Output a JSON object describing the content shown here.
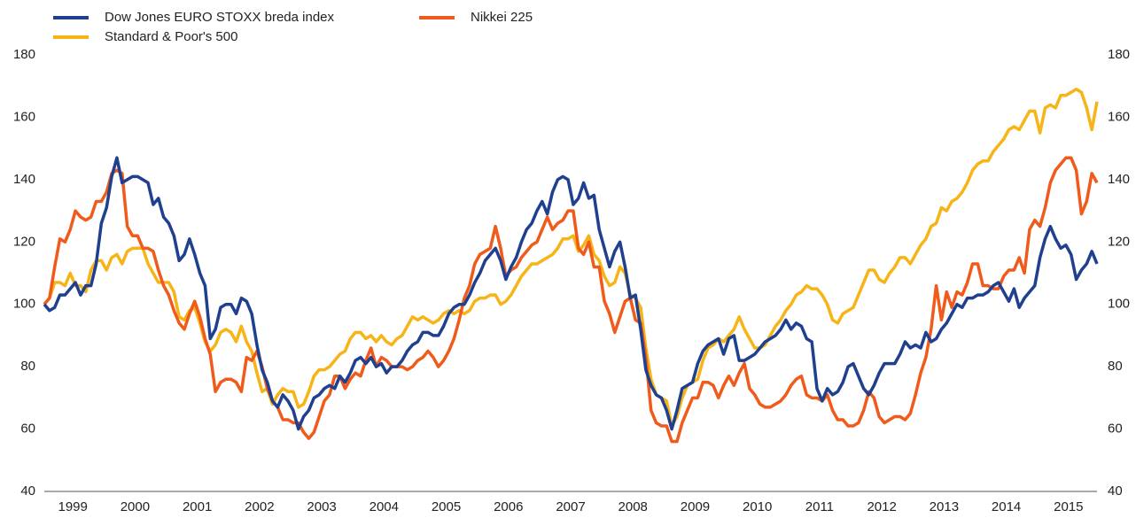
{
  "chart_data": {
    "type": "line",
    "categories": [
      null,
      null,
      null,
      null,
      null,
      null,
      "1999",
      null,
      null,
      null,
      null,
      null,
      null,
      null,
      null,
      null,
      null,
      null,
      "2000",
      null,
      null,
      null,
      null,
      null,
      null,
      null,
      null,
      null,
      null,
      null,
      "2001",
      null,
      null,
      null,
      null,
      null,
      null,
      null,
      null,
      null,
      null,
      null,
      "2002",
      null,
      null,
      null,
      null,
      null,
      null,
      null,
      null,
      null,
      null,
      null,
      "2003",
      null,
      null,
      null,
      null,
      null,
      null,
      null,
      null,
      null,
      null,
      null,
      "2004",
      null,
      null,
      null,
      null,
      null,
      null,
      null,
      null,
      null,
      null,
      null,
      "2005",
      null,
      null,
      null,
      null,
      null,
      null,
      null,
      null,
      null,
      null,
      null,
      "2006",
      null,
      null,
      null,
      null,
      null,
      null,
      null,
      null,
      null,
      null,
      null,
      "2007",
      null,
      null,
      null,
      null,
      null,
      null,
      null,
      null,
      null,
      null,
      null,
      "2008",
      null,
      null,
      null,
      null,
      null,
      null,
      null,
      null,
      null,
      null,
      null,
      "2009",
      null,
      null,
      null,
      null,
      null,
      null,
      null,
      null,
      null,
      null,
      null,
      "2010",
      null,
      null,
      null,
      null,
      null,
      null,
      null,
      null,
      null,
      null,
      null,
      "2011",
      null,
      null,
      null,
      null,
      null,
      null,
      null,
      null,
      null,
      null,
      null,
      "2012",
      null,
      null,
      null,
      null,
      null,
      null,
      null,
      null,
      null,
      null,
      null,
      "2013",
      null,
      null,
      null,
      null,
      null,
      null,
      null,
      null,
      null,
      null,
      null,
      "2014",
      null,
      null,
      null,
      null,
      null,
      null,
      null,
      null,
      null,
      null,
      null,
      "2015",
      null,
      null,
      null,
      null,
      null
    ],
    "series": [
      {
        "name": "Dow Jones EURO STOXX breda index",
        "color": "#1f3f8f",
        "values": [
          100,
          98,
          99,
          103,
          103,
          105,
          107,
          103,
          106,
          106,
          113,
          126,
          131,
          141,
          147,
          139,
          140,
          141,
          141,
          140,
          139,
          132,
          134,
          128,
          126,
          122,
          114,
          116,
          121,
          116,
          110,
          106,
          89,
          92,
          99,
          100,
          100,
          97,
          102,
          101,
          97,
          87,
          79,
          75,
          69,
          67,
          71,
          69,
          66,
          60,
          64,
          66,
          70,
          71,
          73,
          74,
          73,
          77,
          75,
          78,
          82,
          83,
          81,
          83,
          80,
          81,
          78,
          80,
          80,
          82,
          85,
          87,
          88,
          91,
          91,
          90,
          90,
          93,
          97,
          99,
          100,
          100,
          103,
          107,
          110,
          114,
          116,
          118,
          114,
          108,
          112,
          115,
          120,
          124,
          126,
          130,
          133,
          129,
          136,
          140,
          141,
          140,
          132,
          134,
          139,
          134,
          135,
          124,
          118,
          112,
          117,
          120,
          112,
          102,
          103,
          92,
          79,
          74,
          71,
          70,
          66,
          60,
          66,
          73,
          74,
          75,
          81,
          85,
          87,
          88,
          89,
          84,
          89,
          90,
          82,
          82,
          83,
          84,
          86,
          88,
          89,
          90,
          92,
          95,
          92,
          94,
          93,
          89,
          88,
          73,
          69,
          73,
          71,
          72,
          75,
          80,
          81,
          77,
          73,
          71,
          74,
          78,
          81,
          81,
          81,
          84,
          88,
          86,
          87,
          86,
          91,
          88,
          89,
          92,
          94,
          97,
          100,
          99,
          102,
          102,
          103,
          103,
          104,
          106,
          107,
          104,
          101,
          105,
          99,
          102,
          104,
          106,
          115,
          121,
          125,
          121,
          118,
          119,
          116,
          108,
          111,
          113,
          117,
          113
        ]
      },
      {
        "name": "Nikkei 225",
        "color": "#f05a1a",
        "values": [
          100,
          102,
          112,
          121,
          120,
          124,
          130,
          128,
          127,
          128,
          133,
          133,
          136,
          142,
          143,
          142,
          125,
          122,
          122,
          118,
          118,
          117,
          111,
          106,
          103,
          98,
          94,
          92,
          97,
          101,
          96,
          89,
          84,
          72,
          75,
          76,
          76,
          75,
          72,
          83,
          82,
          85,
          80,
          73,
          69,
          67,
          63,
          63,
          62,
          62,
          59,
          57,
          59,
          64,
          69,
          71,
          77,
          77,
          73,
          76,
          78,
          77,
          82,
          86,
          80,
          83,
          82,
          80,
          80,
          80,
          79,
          80,
          82,
          83,
          85,
          83,
          80,
          82,
          85,
          89,
          95,
          102,
          106,
          113,
          116,
          117,
          118,
          125,
          118,
          109,
          111,
          112,
          115,
          117,
          119,
          120,
          124,
          128,
          124,
          126,
          127,
          130,
          130,
          118,
          116,
          120,
          112,
          112,
          101,
          97,
          91,
          96,
          101,
          102,
          95,
          94,
          83,
          66,
          62,
          61,
          61,
          56,
          56,
          62,
          66,
          70,
          70,
          75,
          75,
          74,
          70,
          74,
          77,
          74,
          78,
          81,
          73,
          71,
          68,
          67,
          67,
          68,
          69,
          71,
          74,
          76,
          77,
          71,
          70,
          70,
          69,
          71,
          66,
          63,
          63,
          61,
          61,
          62,
          66,
          72,
          70,
          64,
          62,
          63,
          64,
          64,
          63,
          65,
          71,
          78,
          83,
          92,
          106,
          95,
          104,
          99,
          104,
          103,
          107,
          113,
          113,
          106,
          106,
          105,
          105,
          109,
          111,
          111,
          115,
          110,
          124,
          127,
          125,
          131,
          139,
          143,
          145,
          147,
          147,
          143,
          129,
          133,
          142,
          139
        ]
      },
      {
        "name": "Standard & Poor's 500",
        "color": "#f7b417",
        "values": [
          100,
          102,
          107,
          107,
          106,
          110,
          106,
          106,
          104,
          111,
          114,
          114,
          111,
          115,
          116,
          113,
          117,
          118,
          118,
          118,
          113,
          110,
          107,
          107,
          107,
          104,
          96,
          95,
          98,
          99,
          94,
          88,
          85,
          87,
          91,
          92,
          91,
          88,
          93,
          88,
          85,
          78,
          72,
          73,
          68,
          71,
          73,
          72,
          72,
          67,
          68,
          72,
          77,
          79,
          79,
          80,
          82,
          84,
          85,
          89,
          91,
          91,
          89,
          90,
          88,
          90,
          88,
          87,
          89,
          90,
          93,
          96,
          95,
          96,
          95,
          94,
          95,
          97,
          98,
          97,
          98,
          97,
          98,
          101,
          102,
          102,
          103,
          103,
          100,
          101,
          103,
          106,
          109,
          111,
          113,
          113,
          114,
          115,
          116,
          118,
          121,
          121,
          122,
          117,
          119,
          122,
          116,
          114,
          109,
          106,
          107,
          112,
          110,
          103,
          102,
          99,
          86,
          76,
          71,
          70,
          69,
          61,
          64,
          70,
          74,
          75,
          76,
          82,
          86,
          87,
          89,
          88,
          90,
          92,
          96,
          92,
          89,
          86,
          86,
          87,
          90,
          93,
          95,
          98,
          100,
          103,
          104,
          106,
          105,
          105,
          103,
          100,
          95,
          94,
          97,
          98,
          99,
          103,
          107,
          111,
          111,
          108,
          107,
          110,
          112,
          115,
          115,
          113,
          116,
          119,
          121,
          125,
          126,
          131,
          130,
          133,
          134,
          136,
          139,
          143,
          145,
          146,
          146,
          149,
          151,
          153,
          156,
          157,
          156,
          159,
          162,
          162,
          155,
          163,
          164,
          163,
          167,
          167,
          168,
          169,
          168,
          163,
          156,
          165
        ]
      }
    ],
    "ylim": [
      40,
      180
    ],
    "yticks": [
      40,
      60,
      80,
      100,
      120,
      140,
      160,
      180
    ],
    "y2lim": [
      40,
      180
    ],
    "y2ticks": [
      40,
      60,
      80,
      100,
      120,
      140,
      160,
      180
    ],
    "grid": false
  }
}
